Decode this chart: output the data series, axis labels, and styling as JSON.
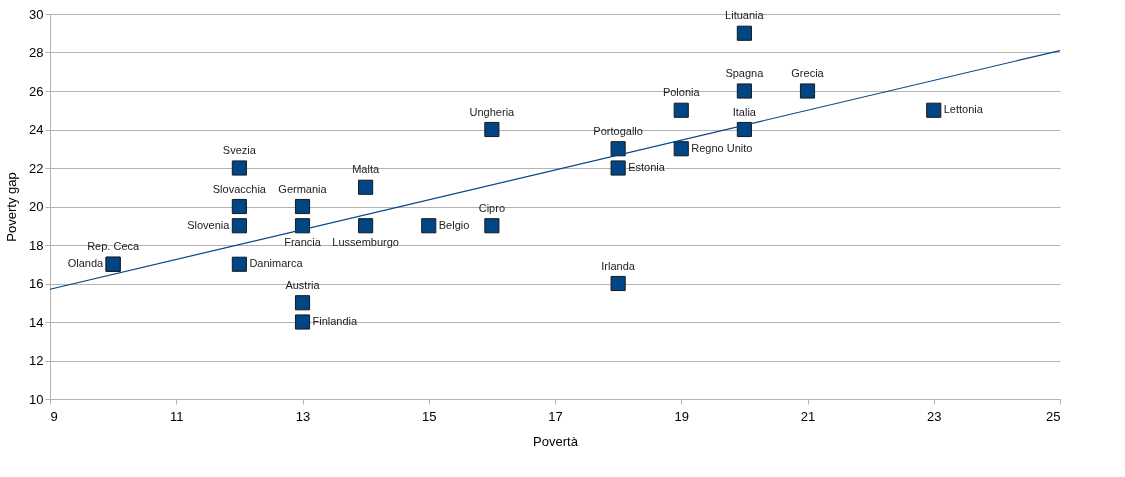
{
  "chart_data": {
    "type": "scatter",
    "xlabel": "Povertà",
    "ylabel": "Poverty gap",
    "xlim": [
      9,
      25
    ],
    "xticks": [
      9,
      11,
      13,
      15,
      17,
      19,
      21,
      23,
      25
    ],
    "ylim": [
      10,
      30
    ],
    "yticks": [
      10,
      12,
      14,
      16,
      18,
      20,
      22,
      24,
      26,
      28,
      30
    ],
    "grid": "y",
    "marker": "square",
    "series": [
      {
        "color": "#004586",
        "x": [
          10,
          10,
          12,
          12,
          12,
          12,
          13,
          13,
          13,
          13,
          14,
          14,
          15,
          16,
          16,
          18,
          18,
          18,
          19,
          19,
          20,
          20,
          20,
          21,
          23
        ],
        "values": [
          17,
          17,
          22,
          20,
          19,
          17,
          20,
          19,
          15,
          14,
          21,
          19,
          19,
          24,
          19,
          23,
          22,
          16,
          25,
          23,
          29,
          26,
          24,
          26,
          25
        ]
      },
      {
        "type": "line",
        "marker": "none",
        "color": "#004586",
        "x": [
          9,
          25
        ],
        "values": [
          15.7,
          28.1
        ]
      }
    ],
    "annotations": [
      {
        "text": "Rep. Ceca",
        "x": 10,
        "y": 17
      },
      {
        "text": "Olanda",
        "x": 10,
        "y": 17
      },
      {
        "text": "Svezia",
        "x": 12,
        "y": 22
      },
      {
        "text": "Slovacchia",
        "x": 12,
        "y": 20
      },
      {
        "text": "Slovenia",
        "x": 12,
        "y": 19
      },
      {
        "text": "Danimarca",
        "x": 12,
        "y": 17
      },
      {
        "text": "Germania",
        "x": 13,
        "y": 20
      },
      {
        "text": "Francia",
        "x": 13,
        "y": 19
      },
      {
        "text": "Austria",
        "x": 13,
        "y": 15
      },
      {
        "text": "Finlandia",
        "x": 13,
        "y": 14
      },
      {
        "text": "Malta",
        "x": 14,
        "y": 21
      },
      {
        "text": "Lussemburgo",
        "x": 14,
        "y": 19
      },
      {
        "text": "Belgio",
        "x": 15,
        "y": 19
      },
      {
        "text": "Ungheria",
        "x": 16,
        "y": 24
      },
      {
        "text": "Cipro",
        "x": 16,
        "y": 19
      },
      {
        "text": "Portogallo",
        "x": 18,
        "y": 23
      },
      {
        "text": "Estonia",
        "x": 18,
        "y": 22
      },
      {
        "text": "Irlanda",
        "x": 18,
        "y": 16
      },
      {
        "text": "Polonia",
        "x": 19,
        "y": 25
      },
      {
        "text": "Regno Unito",
        "x": 19,
        "y": 23
      },
      {
        "text": "Lituania",
        "x": 20,
        "y": 29
      },
      {
        "text": "Spagna",
        "x": 20,
        "y": 26
      },
      {
        "text": "Italia",
        "x": 20,
        "y": 24
      },
      {
        "text": "Grecia",
        "x": 21,
        "y": 26
      },
      {
        "text": "Lettonia",
        "x": 23,
        "y": 25
      }
    ]
  }
}
